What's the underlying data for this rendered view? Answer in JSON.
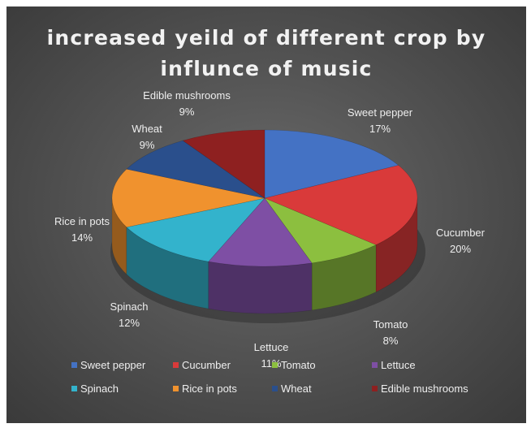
{
  "chart_data": {
    "type": "pie",
    "title_lines": [
      "increased yeild of different crop by",
      "influnce of music"
    ],
    "slices": [
      {
        "name": "Sweet pepper",
        "value": 17,
        "label": "17%",
        "color": "#4472c4"
      },
      {
        "name": "Cucumber",
        "value": 20,
        "label": "20%",
        "color": "#d93a3a"
      },
      {
        "name": "Tomato",
        "value": 8,
        "label": "8%",
        "color": "#8cbf3f"
      },
      {
        "name": "Lettuce",
        "value": 11,
        "label": "11%",
        "color": "#7e4fa4"
      },
      {
        "name": "Spinach",
        "value": 12,
        "label": "12%",
        "color": "#33b3cc"
      },
      {
        "name": "Rice in pots",
        "value": 14,
        "label": "14%",
        "color": "#f0922e"
      },
      {
        "name": "Wheat",
        "value": 9,
        "label": "9%",
        "color": "#2a4f8c"
      },
      {
        "name": "Edible mushrooms",
        "value": 9,
        "label": "9%",
        "color": "#8e2020"
      }
    ],
    "style": "3d-pie",
    "legend_position": "bottom"
  }
}
